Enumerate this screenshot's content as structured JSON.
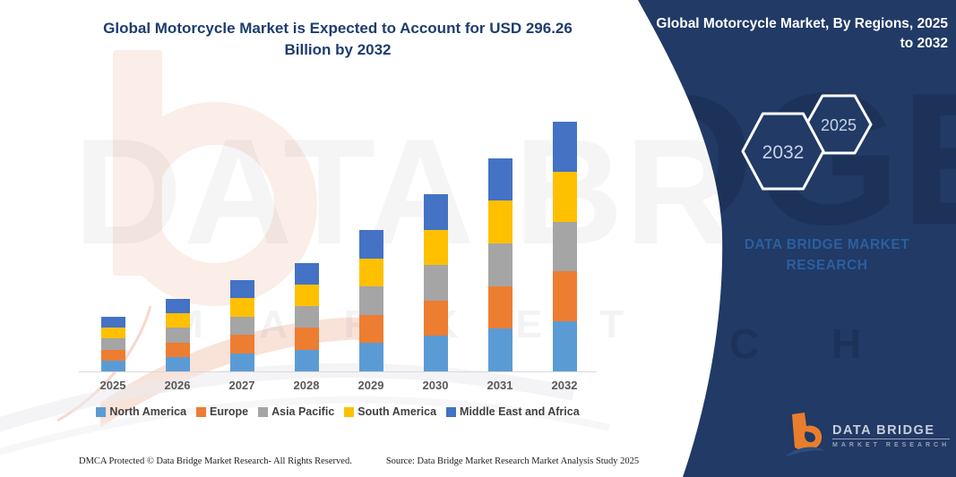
{
  "chart_data": {
    "type": "bar",
    "stacked": true,
    "title": "Global Motorcycle Market is Expected to Account for USD 296.26 Billion by 2032",
    "unit": "USD Billion",
    "categories": [
      "2025",
      "2026",
      "2027",
      "2028",
      "2029",
      "2030",
      "2031",
      "2032"
    ],
    "series": [
      {
        "name": "North America",
        "color": "#5B9BD5",
        "values": [
          13.0,
          17.2,
          21.7,
          25.8,
          33.6,
          42.1,
          50.6,
          59.25
        ]
      },
      {
        "name": "Europe",
        "color": "#ED7D31",
        "values": [
          13.0,
          17.2,
          21.7,
          25.8,
          33.6,
          42.1,
          50.6,
          59.25
        ]
      },
      {
        "name": "Asia Pacific",
        "color": "#A5A5A5",
        "values": [
          13.0,
          17.2,
          21.7,
          25.8,
          33.6,
          42.1,
          50.6,
          59.25
        ]
      },
      {
        "name": "South America",
        "color": "#FFC000",
        "values": [
          13.0,
          17.2,
          21.7,
          25.8,
          33.6,
          42.1,
          50.6,
          59.25
        ]
      },
      {
        "name": "Middle East and Africa",
        "color": "#4472C4",
        "values": [
          13.0,
          17.2,
          21.7,
          25.8,
          33.6,
          42.1,
          50.6,
          59.25
        ]
      }
    ],
    "totals": [
      65,
      86,
      108.5,
      129,
      168,
      210.5,
      253,
      296.26
    ],
    "ylim": [
      0,
      300
    ],
    "gridlines": false,
    "legend_position": "bottom",
    "x_axis_labels_visible": true,
    "y_axis_labels_visible": false
  },
  "side_panel": {
    "heading": "Global Motorcycle Market, By Regions, 2025 to 2032",
    "hexagon_labels": [
      "2032",
      "2025"
    ],
    "brand_name": "DATA BRIDGE MARKET RESEARCH",
    "background_color": "#213A66",
    "accent_text_color": "#2B5F9E"
  },
  "logo": {
    "line1": "DATA BRIDGE",
    "line2": "MARKET RESEARCH"
  },
  "watermark": {
    "row1": "DATA BRIDGE",
    "row2": "M A R K E T",
    "panel_fragment1": "DGE",
    "panel_fragment2": "R C H"
  },
  "footer": {
    "dmca": "DMCA Protected © Data Bridge Market Research-  All Rights Reserved.",
    "source": "Source: Data Bridge Market Research  Market Analysis Study 2025"
  }
}
